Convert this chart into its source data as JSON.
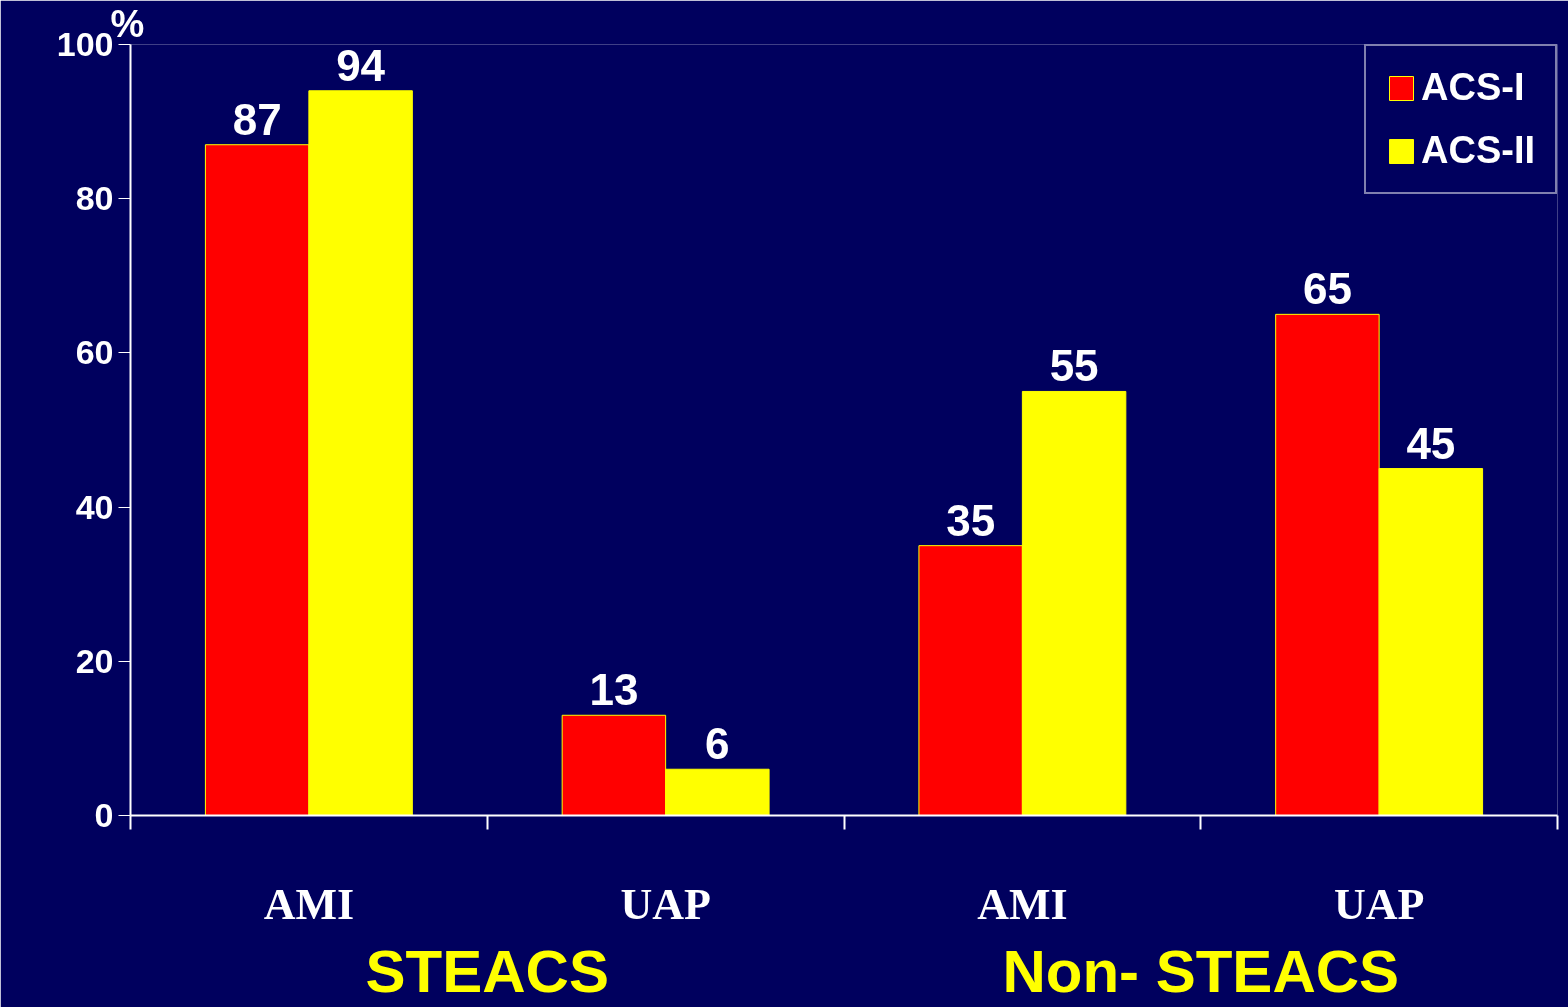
{
  "chart_data": {
    "type": "bar",
    "ylabel": "%",
    "categories": [
      "AMI",
      "UAP",
      "AMI",
      "UAP"
    ],
    "series": [
      {
        "name": "ACS-I",
        "color": "#ff0000",
        "values": [
          87,
          13,
          35,
          65
        ]
      },
      {
        "name": "ACS-II",
        "color": "#ffff00",
        "values": [
          94,
          6,
          55,
          45
        ]
      }
    ],
    "ylim": [
      0,
      100
    ],
    "yticks": [
      0,
      20,
      40,
      60,
      80,
      100
    ],
    "data_labels": true,
    "grid": false,
    "legend": "top right",
    "annotations": [
      "STEACS",
      "Non- STEACS"
    ]
  }
}
